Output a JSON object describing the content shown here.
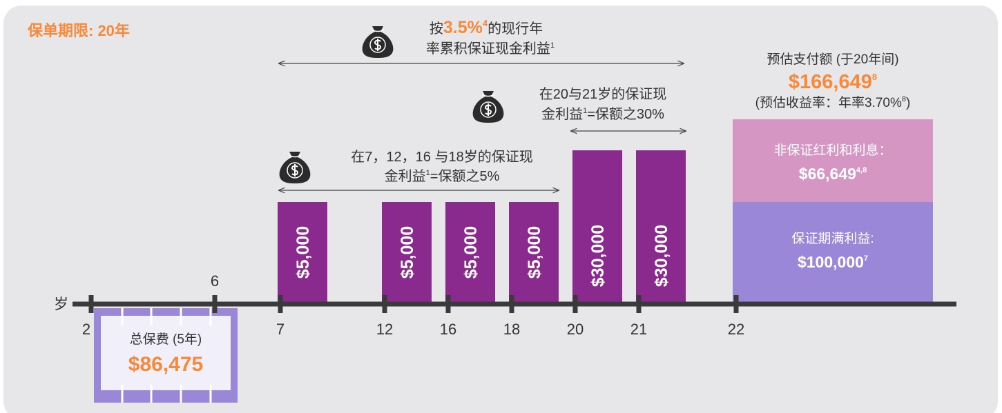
{
  "title": "保单期限: 20年",
  "axis": {
    "label": "岁",
    "ticks": [
      "2",
      "6",
      "7",
      "12",
      "16",
      "18",
      "20",
      "21",
      "22"
    ]
  },
  "premium": {
    "label": "总保费 (5年)",
    "amount": "$86,475"
  },
  "bars": [
    "$5,000",
    "$5,000",
    "$5,000",
    "$5,000",
    "$30,000",
    "$30,000"
  ],
  "notes": {
    "accumulate": {
      "prefix": "按",
      "rate": "3.5%",
      "rate_ref": "4",
      "line1_suffix": "的现行年",
      "line2": "率累积保证现金利益",
      "line2_ref": "1"
    },
    "late": {
      "line1": "在20与21岁的保证现",
      "line2_prefix": "金利益",
      "line2_ref": "1",
      "line2_suffix": "=保额之30%"
    },
    "early": {
      "line1": "在7，12，16 与18岁的保证现",
      "line2_prefix": "金利益",
      "line2_ref": "1",
      "line2_suffix": "=保额之5%"
    }
  },
  "payout": {
    "label": "预估支付额 (于20年间)",
    "amount": "$166,649",
    "amount_ref": "8",
    "yield_prefix": "(预估收益率：年率3.70%",
    "yield_ref": "8",
    "yield_suffix": ")",
    "non_guaranteed": {
      "label": "非保证红利和利息：",
      "amount": "$66,649",
      "ref": "4,8"
    },
    "guaranteed": {
      "label": "保证期满利益:",
      "amount": "$100,000",
      "ref": "7"
    }
  }
}
